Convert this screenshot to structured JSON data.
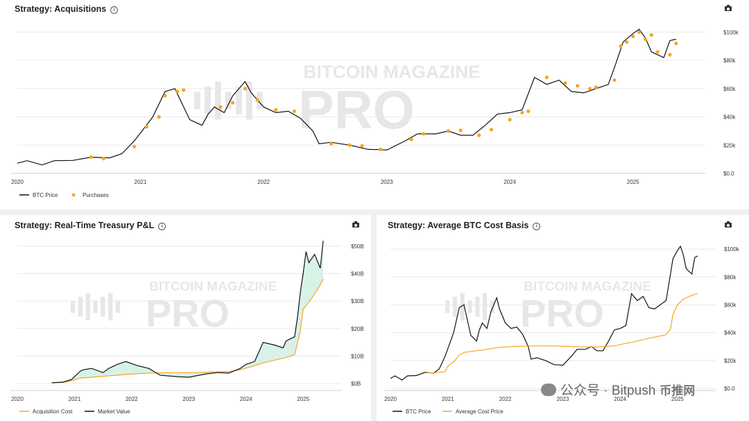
{
  "watermark": {
    "line1": "BITCOIN MAGAZINE",
    "line2": "PRO"
  },
  "overlay_text": "公众号 · Bitpush",
  "overlay_mark": "币推网",
  "colors": {
    "btc": "#111111",
    "orange": "#f5a623",
    "fill": "#d8f2e8",
    "grid": "#e9e9e9"
  },
  "chart_data": [
    {
      "id": "acquisitions",
      "type": "line",
      "title": "Strategy: Acquisitions",
      "x_ticks": [
        "2020",
        "2021",
        "2022",
        "2023",
        "2024",
        "2025"
      ],
      "x_tick_years": [
        2020,
        2021,
        2022,
        2023,
        2024,
        2025
      ],
      "xlim": [
        2020.0,
        2025.52
      ],
      "y_ticks": [
        "$0.0",
        "$20k",
        "$40k",
        "$60k",
        "$80k",
        "$100k"
      ],
      "y_tick_values": [
        0,
        20000,
        40000,
        60000,
        80000,
        100000
      ],
      "ylim": [
        0,
        108000
      ],
      "series": [
        {
          "name": "BTC Price",
          "kind": "line",
          "color": "#111111",
          "x": [
            2020.0,
            2020.08,
            2020.2,
            2020.3,
            2020.45,
            2020.6,
            2020.75,
            2020.85,
            2020.95,
            2021.03,
            2021.1,
            2021.2,
            2021.28,
            2021.4,
            2021.5,
            2021.55,
            2021.6,
            2021.68,
            2021.75,
            2021.85,
            2021.9,
            2022.0,
            2022.1,
            2022.2,
            2022.3,
            2022.4,
            2022.45,
            2022.55,
            2022.7,
            2022.85,
            2022.95,
            2023.0,
            2023.15,
            2023.25,
            2023.4,
            2023.5,
            2023.6,
            2023.7,
            2023.8,
            2023.9,
            2024.0,
            2024.1,
            2024.2,
            2024.3,
            2024.4,
            2024.5,
            2024.6,
            2024.7,
            2024.8,
            2024.85,
            2024.92,
            2025.0,
            2025.05,
            2025.1,
            2025.15,
            2025.2,
            2025.25,
            2025.3,
            2025.35
          ],
          "values": [
            7200,
            9000,
            6000,
            9000,
            9200,
            11500,
            11000,
            14000,
            23000,
            32000,
            40000,
            58000,
            60000,
            38000,
            34000,
            42000,
            47000,
            43000,
            55000,
            65000,
            57000,
            47000,
            43000,
            44000,
            39000,
            30000,
            21000,
            22000,
            20000,
            17000,
            16800,
            16500,
            23000,
            28000,
            28000,
            30000,
            27000,
            27000,
            34000,
            42000,
            43000,
            45000,
            68000,
            63000,
            66000,
            58000,
            57000,
            60000,
            63000,
            75000,
            93000,
            99000,
            102000,
            96000,
            86000,
            84000,
            82000,
            94000,
            95000
          ]
        },
        {
          "name": "Purchases",
          "kind": "dots",
          "color": "#f5a623",
          "x": [
            2020.6,
            2020.7,
            2020.95,
            2021.05,
            2021.15,
            2021.2,
            2021.3,
            2021.35,
            2021.65,
            2021.75,
            2021.85,
            2021.95,
            2022.1,
            2022.25,
            2022.55,
            2022.7,
            2022.8,
            2022.95,
            2023.2,
            2023.3,
            2023.5,
            2023.6,
            2023.75,
            2023.85,
            2024.0,
            2024.1,
            2024.15,
            2024.3,
            2024.45,
            2024.55,
            2024.65,
            2024.7,
            2024.85,
            2024.9,
            2024.95,
            2025.0,
            2025.05,
            2025.1,
            2025.15,
            2025.2,
            2025.3,
            2025.35
          ],
          "values": [
            11500,
            10500,
            19000,
            33000,
            40000,
            55000,
            58000,
            59000,
            47000,
            50000,
            60000,
            52000,
            45000,
            44000,
            21000,
            20000,
            19500,
            17000,
            24000,
            28000,
            30000,
            30500,
            27000,
            31000,
            38000,
            43000,
            44000,
            68000,
            64000,
            62000,
            60000,
            61000,
            66000,
            90000,
            93000,
            97000,
            100000,
            95000,
            98000,
            86000,
            84000,
            92000
          ]
        }
      ],
      "legend": [
        "BTC Price",
        "Purchases"
      ]
    },
    {
      "id": "treasury_pnl",
      "type": "area",
      "title": "Strategy: Real-Time Treasury P&L",
      "x_ticks": [
        "2020",
        "2021",
        "2022",
        "2023",
        "2024",
        "2025"
      ],
      "x_tick_years": [
        2020,
        2021,
        2022,
        2023,
        2024,
        2025
      ],
      "xlim": [
        2020.0,
        2025.52
      ],
      "y_ticks": [
        "$0B",
        "$10B",
        "$20B",
        "$30B",
        "$40B",
        "$50B"
      ],
      "y_tick_values": [
        0,
        10,
        20,
        30,
        40,
        50
      ],
      "ylim": [
        0,
        53
      ],
      "series": [
        {
          "name": "Acquisition Cost",
          "color": "#f5a623",
          "x": [
            2020.6,
            2020.8,
            2020.95,
            2021.1,
            2021.3,
            2021.6,
            2021.9,
            2022.2,
            2022.5,
            2022.8,
            2023.1,
            2023.4,
            2023.7,
            2023.9,
            2024.0,
            2024.15,
            2024.3,
            2024.5,
            2024.7,
            2024.85,
            2024.95,
            2025.0,
            2025.15,
            2025.3,
            2025.35
          ],
          "values": [
            0.3,
            0.4,
            1.0,
            2.0,
            2.3,
            2.8,
            3.3,
            3.7,
            3.9,
            4.0,
            4.0,
            4.2,
            4.4,
            5.0,
            5.6,
            6.5,
            7.5,
            8.5,
            9.5,
            10.5,
            19.0,
            27.0,
            31.0,
            36.0,
            38.0
          ]
        },
        {
          "name": "Market Value",
          "color": "#111111",
          "x": [
            2020.6,
            2020.8,
            2020.95,
            2021.1,
            2021.15,
            2021.3,
            2021.5,
            2021.6,
            2021.75,
            2021.9,
            2022.1,
            2022.3,
            2022.5,
            2022.8,
            2023.0,
            2023.3,
            2023.5,
            2023.7,
            2023.9,
            2024.0,
            2024.15,
            2024.3,
            2024.5,
            2024.65,
            2024.7,
            2024.85,
            2024.9,
            2024.95,
            2025.0,
            2025.05,
            2025.1,
            2025.2,
            2025.3,
            2025.35
          ],
          "values": [
            0.3,
            0.5,
            1.5,
            4.5,
            5.0,
            5.5,
            4.0,
            5.5,
            7.0,
            8.0,
            6.5,
            5.5,
            3.0,
            2.5,
            2.3,
            3.5,
            4.0,
            3.8,
            5.5,
            7.0,
            8.0,
            15.0,
            14.0,
            13.0,
            15.5,
            17.0,
            24.0,
            33.0,
            40.0,
            48.0,
            44.0,
            47.0,
            42.0,
            52.0
          ]
        }
      ],
      "legend": [
        "Acquisition Cost",
        "Market Value"
      ]
    },
    {
      "id": "cost_basis",
      "type": "line",
      "title": "Strategy: Average BTC Cost Basis",
      "x_ticks": [
        "2020",
        "2021",
        "2022",
        "2023",
        "2024",
        "2025"
      ],
      "x_tick_years": [
        2020,
        2021,
        2022,
        2023,
        2024,
        2025
      ],
      "xlim": [
        2020.0,
        2025.52
      ],
      "y_ticks": [
        "$0.0",
        "$20k",
        "$40k",
        "$60k",
        "$80k",
        "$100k"
      ],
      "y_tick_values": [
        0,
        20000,
        40000,
        60000,
        80000,
        100000
      ],
      "ylim": [
        0,
        108000
      ],
      "series": [
        {
          "name": "BTC Price",
          "color": "#111111",
          "x": [
            2020.0,
            2020.08,
            2020.2,
            2020.3,
            2020.45,
            2020.6,
            2020.75,
            2020.85,
            2020.95,
            2021.03,
            2021.1,
            2021.2,
            2021.28,
            2021.4,
            2021.5,
            2021.55,
            2021.6,
            2021.68,
            2021.75,
            2021.85,
            2021.9,
            2022.0,
            2022.1,
            2022.2,
            2022.3,
            2022.4,
            2022.45,
            2022.55,
            2022.7,
            2022.85,
            2022.95,
            2023.0,
            2023.15,
            2023.25,
            2023.4,
            2023.5,
            2023.6,
            2023.7,
            2023.8,
            2023.9,
            2024.0,
            2024.1,
            2024.2,
            2024.3,
            2024.4,
            2024.5,
            2024.6,
            2024.7,
            2024.8,
            2024.85,
            2024.92,
            2025.0,
            2025.05,
            2025.1,
            2025.15,
            2025.2,
            2025.25,
            2025.3,
            2025.35
          ],
          "values": [
            7200,
            9000,
            6000,
            9000,
            9200,
            11500,
            11000,
            14000,
            23000,
            32000,
            40000,
            58000,
            60000,
            38000,
            34000,
            42000,
            47000,
            43000,
            55000,
            65000,
            57000,
            47000,
            43000,
            44000,
            39000,
            30000,
            21000,
            22000,
            20000,
            17000,
            16800,
            16500,
            23000,
            28000,
            28000,
            30000,
            27000,
            27000,
            34000,
            42000,
            43000,
            45000,
            68000,
            63000,
            66000,
            58000,
            57000,
            60000,
            63000,
            75000,
            93000,
            99000,
            102000,
            96000,
            86000,
            84000,
            82000,
            94000,
            95000
          ]
        },
        {
          "name": "Average Cost Price",
          "color": "#f5a623",
          "x": [
            2020.6,
            2020.75,
            2020.95,
            2021.0,
            2021.1,
            2021.2,
            2021.3,
            2021.6,
            2021.9,
            2022.1,
            2022.5,
            2022.8,
            2023.0,
            2023.3,
            2023.6,
            2023.9,
            2024.0,
            2024.2,
            2024.5,
            2024.8,
            2024.88,
            2024.92,
            2025.0,
            2025.1,
            2025.2,
            2025.3,
            2025.35
          ],
          "values": [
            11100,
            11200,
            12000,
            16000,
            19000,
            24000,
            26000,
            27500,
            29500,
            30000,
            30500,
            30500,
            30300,
            29800,
            29700,
            30500,
            31500,
            33000,
            36000,
            38500,
            43000,
            53000,
            60000,
            64000,
            66000,
            67500,
            67800
          ]
        }
      ],
      "legend": [
        "BTC Price",
        "Average Cost Price"
      ]
    }
  ]
}
